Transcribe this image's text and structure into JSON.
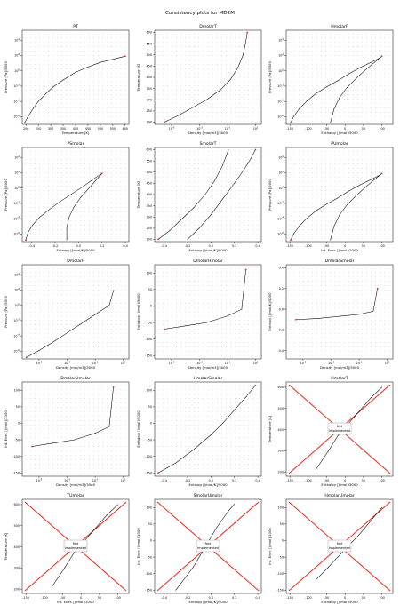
{
  "figure_title": "Consistency plots for MD2M",
  "colors": {
    "line": "#000000",
    "red": "#e8291c",
    "blue": "#1f3fff",
    "grid": "#000000"
  },
  "not_implemented_label": [
    "Not",
    "Implemented"
  ],
  "chart_data": [
    {
      "id": "PT",
      "title": "PT",
      "type": "line",
      "xlabel": "Temperature [K]",
      "ylabel": "Pressure [Pa]/5000",
      "x_ticks": [
        "200",
        "250",
        "300",
        "350",
        "400",
        "450",
        "500",
        "550",
        "600"
      ],
      "xlim": [
        185,
        615
      ],
      "y_ticks": [
        "10^-6",
        "10^-4",
        "10^-2",
        "10^0",
        "10^2",
        "10^4"
      ],
      "ylim": [
        -7,
        5.3
      ],
      "yscale": "log",
      "x": [
        195,
        210,
        230,
        250,
        280,
        310,
        350,
        400,
        450,
        500,
        550,
        600
      ],
      "y": [
        -6.8,
        -5.9,
        -4.9,
        -4.0,
        -3.0,
        -2.1,
        -1.2,
        -0.2,
        0.5,
        1.1,
        1.5,
        1.9
      ]
    },
    {
      "id": "DmolarT",
      "title": "DmolarT",
      "type": "line",
      "xlabel": "Density [mol/m3]/5000",
      "ylabel": "Temperature [K]",
      "x_ticks": [
        "10^-5",
        "10^-3",
        "10^-1",
        "10^1"
      ],
      "xlim": [
        -6.2,
        1.4
      ],
      "xscale": "log",
      "y_ticks": [
        "200",
        "250",
        "300",
        "350",
        "400",
        "450",
        "500",
        "550",
        "600"
      ],
      "ylim": [
        190,
        610
      ],
      "x": [
        -5.5,
        -4.5,
        -3.5,
        -2.5,
        -1.5,
        -0.8,
        -0.3,
        0.1,
        0.3,
        0.4
      ],
      "y": [
        200,
        230,
        265,
        300,
        345,
        390,
        440,
        500,
        560,
        600
      ]
    },
    {
      "id": "HmolarP",
      "title": "HmolarP",
      "type": "line",
      "xlabel": "Enthalpy [J/mol]/5000",
      "ylabel": "Pressure [Pa]/5000",
      "x_ticks": [
        "-150",
        "-100",
        "-50",
        "0",
        "50",
        "100"
      ],
      "xlim": [
        -160,
        130
      ],
      "y_ticks": [
        "10^-6",
        "10^-4",
        "10^-2",
        "10^0",
        "10^2",
        "10^4"
      ],
      "ylim": [
        -7,
        5.3
      ],
      "yscale": "log",
      "series": [
        {
          "x": [
            -148,
            -140,
            -125,
            -105,
            -80,
            -50,
            -20,
            10,
            40,
            70,
            95,
            100
          ],
          "y": [
            -6.8,
            -6.0,
            -5.0,
            -4.0,
            -3.0,
            -2.1,
            -1.3,
            -0.4,
            0.4,
            1.1,
            1.7,
            1.9
          ]
        },
        {
          "x": [
            -40,
            -30,
            -15,
            5,
            30,
            55,
            80,
            100
          ],
          "y": [
            -6.8,
            -5.0,
            -3.5,
            -2.2,
            -1.0,
            0.1,
            1.1,
            1.9
          ]
        }
      ]
    },
    {
      "id": "PSmolar",
      "title": "PSmolar",
      "type": "line",
      "xlabel": "Entropy [J/mol/K]/5000",
      "ylabel": "Pressure [Pa]/5000",
      "x_ticks": [
        "-0.4",
        "-0.2",
        "0.0",
        "0.2",
        "0.4"
      ],
      "xlim": [
        -0.48,
        0.43
      ],
      "y_ticks": [
        "10^-6",
        "10^-4",
        "10^-2",
        "10^0",
        "10^2",
        "10^4"
      ],
      "ylim": [
        -7,
        5.3
      ],
      "yscale": "log",
      "series": [
        {
          "x": [
            -0.45,
            -0.43,
            -0.39,
            -0.33,
            -0.25,
            -0.16,
            -0.06,
            0.04,
            0.13,
            0.2
          ],
          "y": [
            -6.8,
            -5.8,
            -4.8,
            -3.8,
            -2.8,
            -1.8,
            -0.8,
            0.2,
            1.2,
            1.9
          ]
        },
        {
          "x": [
            -0.1,
            -0.1,
            -0.08,
            -0.04,
            0.02,
            0.09,
            0.16,
            0.2
          ],
          "y": [
            -6.8,
            -5.2,
            -3.8,
            -2.5,
            -1.2,
            0.0,
            1.2,
            1.9
          ]
        }
      ]
    },
    {
      "id": "SmolarT",
      "title": "SmolarT",
      "type": "line",
      "xlabel": "Entropy [J/mol/K]/5000",
      "ylabel": "Temperature [K]",
      "x_ticks": [
        "-0.4",
        "-0.2",
        "0.0",
        "0.2",
        "0.4"
      ],
      "xlim": [
        -0.48,
        0.43
      ],
      "y_ticks": [
        "200",
        "250",
        "300",
        "350",
        "400",
        "450",
        "500",
        "550",
        "600"
      ],
      "ylim": [
        190,
        610
      ],
      "series": [
        {
          "x": [
            -0.45,
            -0.35,
            -0.25,
            -0.15,
            -0.05,
            0.03,
            0.1,
            0.15
          ],
          "y": [
            200,
            240,
            290,
            340,
            400,
            460,
            530,
            600
          ]
        },
        {
          "x": [
            -0.2,
            -0.1,
            0.0,
            0.1,
            0.2,
            0.28,
            0.34,
            0.38
          ],
          "y": [
            200,
            250,
            310,
            380,
            450,
            510,
            560,
            600
          ]
        }
      ]
    },
    {
      "id": "PUmolar",
      "title": "PUmolar",
      "type": "line",
      "xlabel": "Int. Ener. [J/mol]/1000",
      "ylabel": "Pressure [Pa]/5000",
      "x_ticks": [
        "-150",
        "-100",
        "-50",
        "0",
        "50",
        "100"
      ],
      "xlim": [
        -160,
        130
      ],
      "y_ticks": [
        "10^-6",
        "10^-4",
        "10^-2",
        "10^0",
        "10^2",
        "10^4"
      ],
      "ylim": [
        -7,
        5.3
      ],
      "yscale": "log",
      "series": [
        {
          "x": [
            -148,
            -140,
            -125,
            -105,
            -80,
            -50,
            -20,
            10,
            40,
            70,
            95,
            100
          ],
          "y": [
            -6.8,
            -6.0,
            -5.0,
            -4.0,
            -3.0,
            -2.1,
            -1.3,
            -0.4,
            0.4,
            1.1,
            1.7,
            1.9
          ]
        },
        {
          "x": [
            -40,
            -30,
            -15,
            5,
            30,
            55,
            80,
            100
          ],
          "y": [
            -6.8,
            -5.0,
            -3.5,
            -2.2,
            -1.0,
            0.1,
            1.1,
            1.9
          ]
        }
      ]
    },
    {
      "id": "DmolarP",
      "title": "DmolarP",
      "type": "line",
      "xlabel": "Density [mol/m3]/5000",
      "ylabel": "Pressure [Pa]/5000",
      "x_ticks": [
        "10^-5",
        "10^-3",
        "10^-1",
        "10^1"
      ],
      "xlim": [
        -6.2,
        1.4
      ],
      "xscale": "log",
      "y_ticks": [
        "10^-6",
        "10^-4",
        "10^-2",
        "10^0",
        "10^2",
        "10^4"
      ],
      "ylim": [
        -7,
        5.3
      ],
      "yscale": "log",
      "x": [
        -5.9,
        -5.0,
        -4.0,
        -3.0,
        -2.0,
        -1.0,
        0.0,
        0.3
      ],
      "y": [
        -6.8,
        -5.9,
        -4.8,
        -3.6,
        -2.4,
        -1.2,
        0.0,
        1.9
      ]
    },
    {
      "id": "DmolarHmolar",
      "title": "DmolarHmolar",
      "type": "line",
      "xlabel": "Density [mol/m3]/5000",
      "ylabel": "Enthalpy [J/mol]/5000",
      "x_ticks": [
        "10^-5",
        "10^-3",
        "10^-1",
        "10^1"
      ],
      "xlim": [
        -6.2,
        1.4
      ],
      "xscale": "log",
      "y_ticks": [
        "-150",
        "-100",
        "-50",
        "0",
        "50",
        "100"
      ],
      "ylim": [
        -160,
        125
      ],
      "x": [
        -5.5,
        -4.0,
        -2.5,
        -1.0,
        0.0,
        0.3
      ],
      "y": [
        -70,
        -60,
        -50,
        -30,
        -10,
        110
      ]
    },
    {
      "id": "DmolarSmolar",
      "title": "DmolarSmolar",
      "type": "line",
      "xlabel": "Density [mol/m3]/5000",
      "ylabel": "Entropy [J/mol/K]/5000",
      "x_ticks": [
        "10^-5",
        "10^-3",
        "10^-1",
        "10^1"
      ],
      "xlim": [
        -6.2,
        1.4
      ],
      "xscale": "log",
      "y_ticks": [
        "-0.4",
        "-0.2",
        "0.0",
        "0.2",
        "0.4"
      ],
      "ylim": [
        -0.48,
        0.43
      ],
      "x": [
        -5.5,
        -4.0,
        -2.5,
        -1.0,
        0.0,
        0.3
      ],
      "y": [
        -0.1,
        -0.09,
        -0.07,
        -0.05,
        -0.02,
        0.2
      ]
    },
    {
      "id": "DmolarUmolar",
      "title": "DmolarUmolar",
      "type": "line",
      "xlabel": "Density [mol/m3]/5000",
      "ylabel": "Int. Ener. [J/mol]/1000",
      "x_ticks": [
        "10^-5",
        "10^-3",
        "10^-1",
        "10^1"
      ],
      "xlim": [
        -6.2,
        1.4
      ],
      "xscale": "log",
      "y_ticks": [
        "-150",
        "-100",
        "-50",
        "0",
        "50",
        "100"
      ],
      "ylim": [
        -160,
        125
      ],
      "x": [
        -5.5,
        -4.0,
        -2.5,
        -1.0,
        0.0,
        0.3
      ],
      "y": [
        -70,
        -60,
        -50,
        -30,
        -10,
        110
      ]
    },
    {
      "id": "HmolarSmolar",
      "title": "HmolarSmolar",
      "type": "line",
      "xlabel": "Entropy [J/mol/K]/5000",
      "ylabel": "Enthalpy [J/mol]/5000",
      "x_ticks": [
        "-0.4",
        "-0.2",
        "0.0",
        "0.2",
        "0.4"
      ],
      "xlim": [
        -0.48,
        0.43
      ],
      "y_ticks": [
        "-150",
        "-100",
        "-50",
        "0",
        "50",
        "100"
      ],
      "ylim": [
        -160,
        125
      ],
      "x": [
        -0.45,
        -0.3,
        -0.15,
        0.0,
        0.1,
        0.2,
        0.3,
        0.38
      ],
      "y": [
        -150,
        -120,
        -80,
        -35,
        0,
        40,
        80,
        115
      ]
    },
    {
      "id": "HmolarT",
      "title": "HmolarT",
      "type": "line",
      "xlabel": "Enthalpy [J/mol]/5000",
      "ylabel": "Temperature [K]",
      "x_ticks": [
        "-150",
        "-100",
        "-50",
        "0",
        "50",
        "100"
      ],
      "xlim": [
        -160,
        130
      ],
      "y_ticks": [
        "200",
        "300",
        "400",
        "500",
        "600"
      ],
      "ylim": [
        180,
        625
      ],
      "not_implemented": true,
      "x": [
        -80,
        -45,
        -20,
        10,
        40,
        70,
        100
      ],
      "y": [
        210,
        300,
        370,
        430,
        490,
        550,
        600
      ]
    },
    {
      "id": "TUmolar",
      "title": "TUmolar",
      "type": "line",
      "xlabel": "Int. Ener. [J/mol]/1000",
      "ylabel": "Temperature [K]",
      "x_ticks": [
        "-150",
        "-100",
        "-50",
        "0",
        "50",
        "100"
      ],
      "xlim": [
        -160,
        130
      ],
      "y_ticks": [
        "200",
        "300",
        "400",
        "500",
        "600"
      ],
      "ylim": [
        180,
        625
      ],
      "not_implemented": true,
      "x": [
        -80,
        -45,
        -20,
        10,
        40,
        70,
        100
      ],
      "y": [
        210,
        300,
        370,
        430,
        490,
        550,
        600
      ]
    },
    {
      "id": "SmolarUmolar",
      "title": "SmolarUmolar",
      "type": "line",
      "xlabel": "Entropy [J/mol/K]/5000",
      "ylabel": "Int. Ener. [J/mol]/1000",
      "x_ticks": [
        "-0.4",
        "-0.2",
        "0.0",
        "0.2",
        "0.4"
      ],
      "xlim": [
        -0.48,
        0.43
      ],
      "y_ticks": [
        "-150",
        "-100",
        "-50",
        "0",
        "50",
        "100"
      ],
      "ylim": [
        -160,
        125
      ],
      "not_implemented": true,
      "x": [
        -0.3,
        -0.15,
        -0.05,
        0.05,
        0.15,
        0.2
      ],
      "y": [
        -150,
        -80,
        -20,
        40,
        90,
        110
      ]
    },
    {
      "id": "HmolarUmolar",
      "title": "HmolarUmolar",
      "type": "line",
      "xlabel": "Enthalpy [J/mol]/5000",
      "ylabel": "Int. Ener. [J/mol]/1000",
      "x_ticks": [
        "-150",
        "-100",
        "-50",
        "0",
        "50",
        "100"
      ],
      "xlim": [
        -160,
        130
      ],
      "y_ticks": [
        "-150",
        "-100",
        "-50",
        "0",
        "50",
        "100"
      ],
      "ylim": [
        -160,
        125
      ],
      "not_implemented": true,
      "x": [
        -80,
        -45,
        -20,
        10,
        40,
        70,
        100
      ],
      "y": [
        -120,
        -80,
        -50,
        -15,
        20,
        60,
        100
      ]
    }
  ]
}
